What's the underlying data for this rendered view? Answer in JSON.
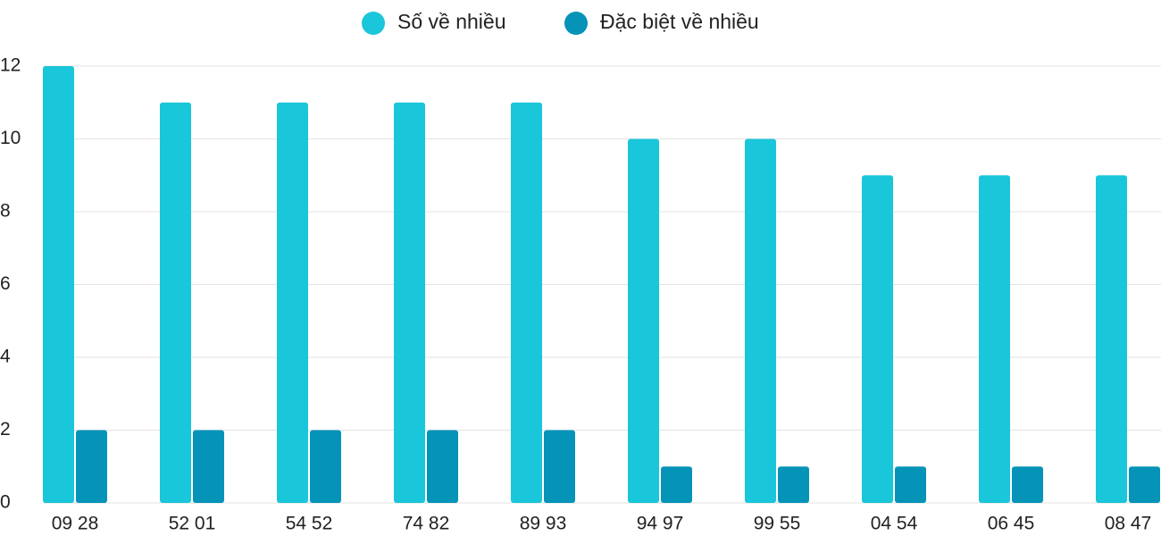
{
  "chart_data": {
    "type": "bar",
    "categories": [
      "09 28",
      "52 01",
      "54 52",
      "74 82",
      "89 93",
      "94 97",
      "99 55",
      "04 54",
      "06 45",
      "08 47"
    ],
    "series": [
      {
        "name": "Số về nhiều",
        "color": "#1ac6d9",
        "values": [
          12,
          11,
          11,
          11,
          11,
          10,
          10,
          9,
          9,
          9
        ]
      },
      {
        "name": "Đặc biệt về nhiều",
        "color": "#0593b8",
        "values": [
          2,
          2,
          2,
          2,
          2,
          1,
          1,
          1,
          1,
          1
        ]
      }
    ],
    "ylim": [
      0,
      12
    ],
    "yticks": [
      0,
      2,
      4,
      6,
      8,
      10,
      12
    ],
    "grid": true,
    "legend": "top"
  }
}
